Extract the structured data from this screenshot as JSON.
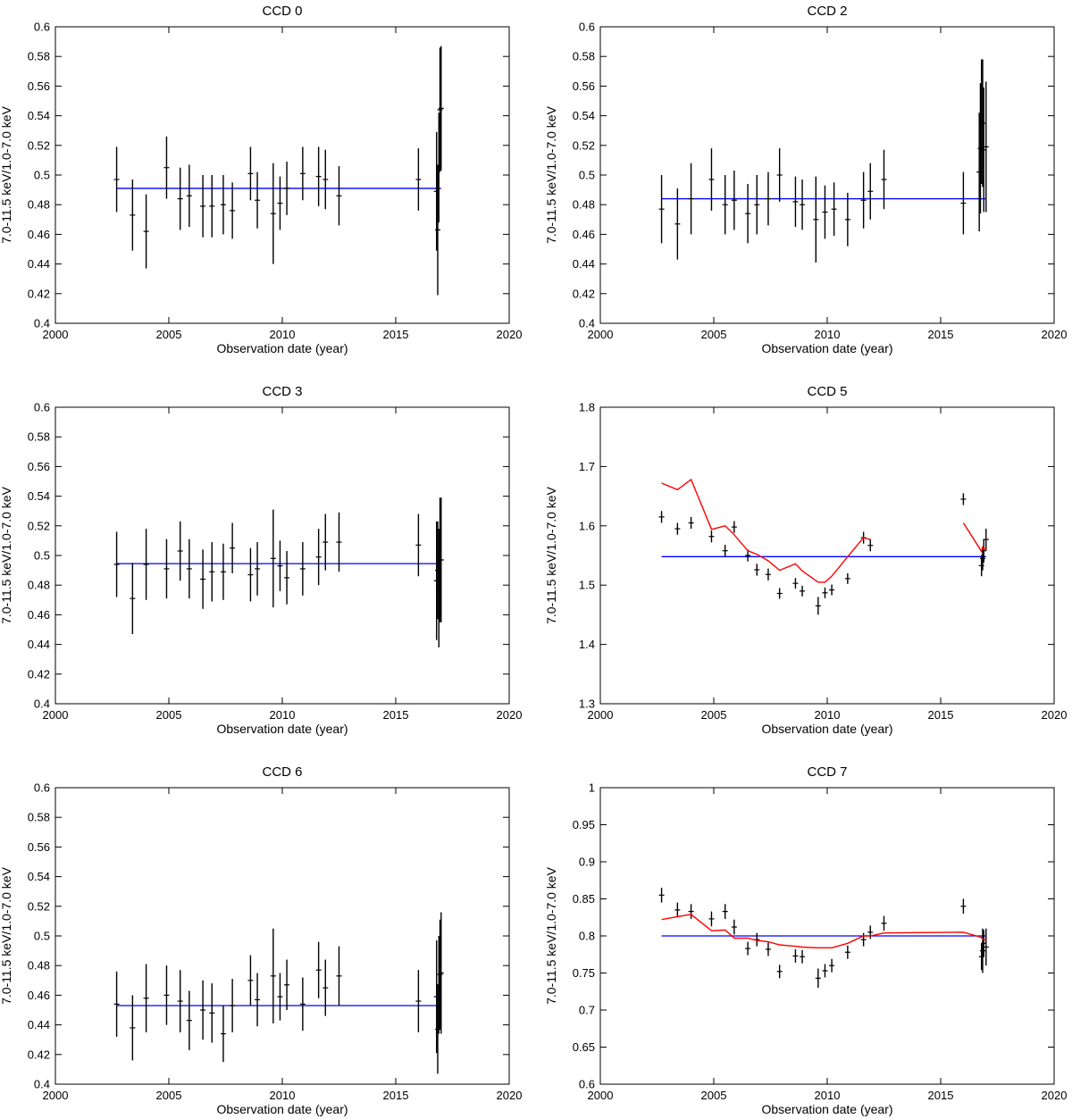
{
  "figure": {
    "background": "#ffffff",
    "axis_color": "#000000",
    "data_color": "#000000",
    "mean_color": "#0000ff",
    "model_color": "#ff0000"
  },
  "chart_data": [
    {
      "type": "scatter",
      "title": "CCD 0",
      "xlabel": "Observation date (year)",
      "ylabel": "7.0-11.5 keV/1.0-7.0 keV",
      "xlim": [
        2000,
        2020
      ],
      "ylim": [
        0.4,
        0.6
      ],
      "xticks": [
        2000,
        2005,
        2010,
        2015,
        2020
      ],
      "yticks": [
        0.4,
        0.42,
        0.44,
        0.46,
        0.48,
        0.5,
        0.52,
        0.54,
        0.56,
        0.58,
        0.6
      ],
      "ytick_labels": [
        "0.4",
        "0.42",
        "0.44",
        "0.46",
        "0.48",
        "0.5",
        "0.52",
        "0.54",
        "0.56",
        "0.58",
        "0.6"
      ],
      "mean": 0.491,
      "x_span": [
        2002.7,
        2017.0
      ],
      "series": [
        {
          "name": "data",
          "x": [
            2002.7,
            2003.4,
            2004.0,
            2004.9,
            2005.5,
            2005.9,
            2006.5,
            2006.9,
            2007.4,
            2007.8,
            2008.6,
            2008.9,
            2009.6,
            2009.9,
            2010.2,
            2010.9,
            2011.6,
            2011.9,
            2012.5,
            2016.0,
            2016.8,
            2016.85,
            2016.9,
            2016.95,
            2017.0
          ],
          "y": [
            0.497,
            0.473,
            0.462,
            0.505,
            0.484,
            0.486,
            0.479,
            0.479,
            0.48,
            0.476,
            0.501,
            0.483,
            0.474,
            0.481,
            0.491,
            0.501,
            0.499,
            0.497,
            0.486,
            0.497,
            0.489,
            0.463,
            0.505,
            0.544,
            0.545
          ],
          "err": [
            0.022,
            0.024,
            0.025,
            0.021,
            0.021,
            0.021,
            0.021,
            0.021,
            0.02,
            0.019,
            0.018,
            0.019,
            0.034,
            0.018,
            0.018,
            0.018,
            0.02,
            0.02,
            0.02,
            0.021,
            0.04,
            0.044,
            0.037,
            0.042,
            0.042
          ]
        }
      ]
    },
    {
      "type": "scatter",
      "title": "CCD 2",
      "xlabel": "Observation date (year)",
      "ylabel": "7.0-11.5 keV/1.0-7.0 keV",
      "xlim": [
        2000,
        2020
      ],
      "ylim": [
        0.4,
        0.6
      ],
      "xticks": [
        2000,
        2005,
        2010,
        2015,
        2020
      ],
      "yticks": [
        0.4,
        0.42,
        0.44,
        0.46,
        0.48,
        0.5,
        0.52,
        0.54,
        0.56,
        0.58,
        0.6
      ],
      "ytick_labels": [
        "0.4",
        "0.42",
        "0.44",
        "0.46",
        "0.48",
        "0.5",
        "0.52",
        "0.54",
        "0.56",
        "0.58",
        "0.6"
      ],
      "mean": 0.484,
      "x_span": [
        2002.7,
        2017.0
      ],
      "series": [
        {
          "name": "data",
          "x": [
            2002.7,
            2003.4,
            2004.0,
            2004.9,
            2005.5,
            2005.9,
            2006.5,
            2006.9,
            2007.4,
            2007.9,
            2008.6,
            2008.9,
            2009.5,
            2009.9,
            2010.3,
            2010.9,
            2011.6,
            2011.9,
            2012.5,
            2016.0,
            2016.7,
            2016.75,
            2016.8,
            2016.85,
            2016.9,
            2017.0
          ],
          "y": [
            0.477,
            0.467,
            0.484,
            0.497,
            0.48,
            0.483,
            0.474,
            0.48,
            0.484,
            0.5,
            0.482,
            0.48,
            0.47,
            0.475,
            0.477,
            0.47,
            0.483,
            0.489,
            0.497,
            0.481,
            0.502,
            0.518,
            0.536,
            0.535,
            0.517,
            0.519
          ],
          "err": [
            0.023,
            0.024,
            0.024,
            0.021,
            0.02,
            0.02,
            0.02,
            0.02,
            0.018,
            0.018,
            0.017,
            0.017,
            0.029,
            0.018,
            0.018,
            0.018,
            0.019,
            0.019,
            0.02,
            0.021,
            0.04,
            0.044,
            0.042,
            0.043,
            0.042,
            0.044
          ]
        }
      ]
    },
    {
      "type": "scatter",
      "title": "CCD 3",
      "xlabel": "Observation date (year)",
      "ylabel": "7.0-11.5 keV/1.0-7.0 keV",
      "xlim": [
        2000,
        2020
      ],
      "ylim": [
        0.4,
        0.6
      ],
      "xticks": [
        2000,
        2005,
        2010,
        2015,
        2020
      ],
      "yticks": [
        0.4,
        0.42,
        0.44,
        0.46,
        0.48,
        0.5,
        0.52,
        0.54,
        0.56,
        0.58,
        0.6
      ],
      "ytick_labels": [
        "0.4",
        "0.42",
        "0.44",
        "0.46",
        "0.48",
        "0.5",
        "0.52",
        "0.54",
        "0.56",
        "0.58",
        "0.6"
      ],
      "mean": 0.4945,
      "x_span": [
        2002.7,
        2017.0
      ],
      "series": [
        {
          "name": "data",
          "x": [
            2002.7,
            2003.4,
            2004.0,
            2004.9,
            2005.5,
            2005.9,
            2006.5,
            2006.9,
            2007.4,
            2007.8,
            2008.6,
            2008.9,
            2009.6,
            2009.9,
            2010.2,
            2010.9,
            2011.6,
            2011.9,
            2012.5,
            2016.0,
            2016.8,
            2016.85,
            2016.9,
            2016.95,
            2017.0
          ],
          "y": [
            0.494,
            0.471,
            0.494,
            0.491,
            0.503,
            0.491,
            0.484,
            0.489,
            0.489,
            0.505,
            0.487,
            0.491,
            0.498,
            0.493,
            0.485,
            0.491,
            0.499,
            0.509,
            0.509,
            0.507,
            0.483,
            0.49,
            0.478,
            0.497,
            0.497
          ],
          "err": [
            0.022,
            0.024,
            0.024,
            0.02,
            0.02,
            0.02,
            0.02,
            0.02,
            0.019,
            0.017,
            0.018,
            0.018,
            0.033,
            0.017,
            0.018,
            0.018,
            0.019,
            0.019,
            0.02,
            0.021,
            0.04,
            0.033,
            0.04,
            0.042,
            0.042
          ]
        }
      ]
    },
    {
      "type": "scatter",
      "title": "CCD 5",
      "xlabel": "Observation date (year)",
      "ylabel": "7.0-11.5 keV/1.0-7.0 keV",
      "xlim": [
        2000,
        2020
      ],
      "ylim": [
        1.3,
        1.8
      ],
      "xticks": [
        2000,
        2005,
        2010,
        2015,
        2020
      ],
      "yticks": [
        1.3,
        1.4,
        1.5,
        1.6,
        1.7,
        1.8
      ],
      "ytick_labels": [
        "1.3",
        "1.4",
        "1.5",
        "1.6",
        "1.7",
        "1.8"
      ],
      "mean": 1.548,
      "x_span": [
        2002.7,
        2017.0
      ],
      "series": [
        {
          "name": "data",
          "x": [
            2002.7,
            2003.4,
            2004.0,
            2004.9,
            2005.5,
            2005.9,
            2006.5,
            2006.9,
            2007.4,
            2007.9,
            2008.6,
            2008.9,
            2009.6,
            2009.9,
            2010.2,
            2010.9,
            2011.6,
            2011.9,
            2016.0,
            2016.8,
            2016.85,
            2016.9,
            2017.0
          ],
          "y": [
            1.615,
            1.595,
            1.605,
            1.582,
            1.558,
            1.598,
            1.55,
            1.526,
            1.518,
            1.486,
            1.503,
            1.49,
            1.465,
            1.487,
            1.492,
            1.511,
            1.58,
            1.567,
            1.645,
            1.533,
            1.545,
            1.558,
            1.577
          ],
          "err": [
            0.01,
            0.01,
            0.01,
            0.01,
            0.01,
            0.01,
            0.01,
            0.01,
            0.01,
            0.009,
            0.009,
            0.009,
            0.015,
            0.009,
            0.009,
            0.009,
            0.01,
            0.01,
            0.01,
            0.018,
            0.02,
            0.02,
            0.018
          ]
        },
        {
          "name": "model",
          "segments": [
            {
              "x": [
                2002.7,
                2003.4,
                2004.0,
                2004.9,
                2005.5,
                2005.9,
                2006.5,
                2006.9,
                2007.4,
                2007.9,
                2008.6,
                2008.9,
                2009.6,
                2009.9,
                2010.2,
                2010.9,
                2011.6,
                2011.9
              ],
              "y": [
                1.672,
                1.661,
                1.678,
                1.594,
                1.6,
                1.585,
                1.558,
                1.552,
                1.541,
                1.525,
                1.536,
                1.524,
                1.505,
                1.505,
                1.515,
                1.548,
                1.58,
                1.577
              ]
            },
            {
              "x": [
                2016.0,
                2016.8,
                2016.85,
                2016.9,
                2017.0
              ],
              "y": [
                1.605,
                1.557,
                1.564,
                1.561,
                1.561
              ]
            }
          ]
        }
      ]
    },
    {
      "type": "scatter",
      "title": "CCD 6",
      "xlabel": "Observation date (year)",
      "ylabel": "7.0-11.5 keV/1.0-7.0 keV",
      "xlim": [
        2000,
        2020
      ],
      "ylim": [
        0.4,
        0.6
      ],
      "xticks": [
        2000,
        2005,
        2010,
        2015,
        2020
      ],
      "yticks": [
        0.4,
        0.42,
        0.44,
        0.46,
        0.48,
        0.5,
        0.52,
        0.54,
        0.56,
        0.58,
        0.6
      ],
      "ytick_labels": [
        "0.4",
        "0.42",
        "0.44",
        "0.46",
        "0.48",
        "0.5",
        "0.52",
        "0.54",
        "0.56",
        "0.58",
        "0.6"
      ],
      "mean": 0.453,
      "x_span": [
        2002.7,
        2017.0
      ],
      "series": [
        {
          "name": "data",
          "x": [
            2002.7,
            2003.4,
            2004.0,
            2004.9,
            2005.5,
            2005.9,
            2006.5,
            2006.9,
            2007.4,
            2007.8,
            2008.6,
            2008.9,
            2009.6,
            2009.9,
            2010.2,
            2010.9,
            2011.6,
            2011.9,
            2012.5,
            2016.0,
            2016.8,
            2016.85,
            2016.9,
            2016.95,
            2017.0
          ],
          "y": [
            0.454,
            0.438,
            0.458,
            0.46,
            0.456,
            0.443,
            0.45,
            0.448,
            0.434,
            0.453,
            0.47,
            0.457,
            0.473,
            0.459,
            0.467,
            0.454,
            0.477,
            0.465,
            0.473,
            0.456,
            0.459,
            0.437,
            0.467,
            0.474,
            0.475
          ],
          "err": [
            0.022,
            0.022,
            0.023,
            0.02,
            0.021,
            0.02,
            0.02,
            0.02,
            0.019,
            0.018,
            0.017,
            0.018,
            0.032,
            0.016,
            0.017,
            0.018,
            0.019,
            0.019,
            0.02,
            0.021,
            0.038,
            0.03,
            0.033,
            0.037,
            0.041
          ]
        }
      ]
    },
    {
      "type": "scatter",
      "title": "CCD 7",
      "xlabel": "Observation date (year)",
      "ylabel": "7.0-11.5 keV/1.0-7.0 keV",
      "xlim": [
        2000,
        2020
      ],
      "ylim": [
        0.6,
        1.0
      ],
      "xticks": [
        2000,
        2005,
        2010,
        2015,
        2020
      ],
      "yticks": [
        0.6,
        0.65,
        0.7,
        0.75,
        0.8,
        0.85,
        0.9,
        0.95,
        1.0
      ],
      "ytick_labels": [
        "0.6",
        "0.65",
        "0.7",
        "0.75",
        "0.8",
        "0.85",
        "0.9",
        "0.95",
        "1"
      ],
      "mean": 0.8,
      "x_span": [
        2002.7,
        2017.0
      ],
      "series": [
        {
          "name": "data",
          "x": [
            2002.7,
            2003.4,
            2004.0,
            2004.9,
            2005.5,
            2005.9,
            2006.5,
            2006.9,
            2007.4,
            2007.9,
            2008.6,
            2008.9,
            2009.6,
            2009.9,
            2010.2,
            2010.9,
            2011.6,
            2011.9,
            2012.5,
            2016.0,
            2016.8,
            2016.85,
            2016.9,
            2017.0
          ],
          "y": [
            0.855,
            0.835,
            0.833,
            0.823,
            0.833,
            0.812,
            0.783,
            0.795,
            0.782,
            0.752,
            0.773,
            0.772,
            0.743,
            0.753,
            0.76,
            0.778,
            0.795,
            0.805,
            0.817,
            0.84,
            0.772,
            0.78,
            0.79,
            0.785
          ],
          "err": [
            0.01,
            0.01,
            0.01,
            0.01,
            0.01,
            0.01,
            0.009,
            0.009,
            0.009,
            0.009,
            0.009,
            0.009,
            0.013,
            0.009,
            0.009,
            0.009,
            0.009,
            0.009,
            0.01,
            0.01,
            0.018,
            0.03,
            0.018,
            0.025
          ]
        },
        {
          "name": "model",
          "segments": [
            {
              "x": [
                2002.7,
                2003.4,
                2004.0,
                2004.9,
                2005.5,
                2005.9,
                2006.5,
                2006.9,
                2007.4,
                2007.9,
                2008.6,
                2008.9,
                2009.6,
                2009.9,
                2010.2,
                2010.9,
                2011.6,
                2011.9,
                2012.5,
                2016.0,
                2016.8,
                2016.85,
                2016.9,
                2017.0
              ],
              "y": [
                0.822,
                0.826,
                0.829,
                0.807,
                0.808,
                0.797,
                0.797,
                0.794,
                0.792,
                0.788,
                0.786,
                0.785,
                0.784,
                0.784,
                0.784,
                0.79,
                0.8,
                0.8,
                0.804,
                0.805,
                0.798,
                0.795,
                0.795,
                0.795
              ]
            }
          ]
        }
      ]
    }
  ]
}
